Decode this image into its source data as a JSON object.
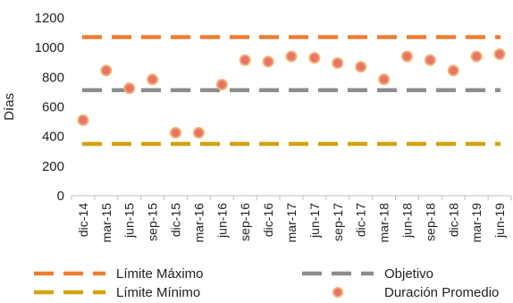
{
  "chart_data": {
    "type": "line",
    "title": "",
    "xlabel": "",
    "ylabel": "Días",
    "ylim": [
      0,
      1200
    ],
    "yticks": [
      0,
      200,
      400,
      600,
      800,
      1000,
      1200
    ],
    "grid": false,
    "legend_position": "bottom",
    "categories": [
      "dic-14",
      "mar-15",
      "jun-15",
      "sep-15",
      "dic-15",
      "mar-16",
      "jun-16",
      "sep-16",
      "dic-16",
      "mar-17",
      "jun-17",
      "sep-17",
      "dic-17",
      "mar-18",
      "jun-18",
      "sep-18",
      "dic-18",
      "mar-19",
      "jun-19"
    ],
    "series": [
      {
        "name": "Límite Máximo",
        "style": "dashed-line",
        "color": "#ED7D31",
        "values": [
          1070,
          1070,
          1070,
          1070,
          1070,
          1070,
          1070,
          1070,
          1070,
          1070,
          1070,
          1070,
          1070,
          1070,
          1070,
          1070,
          1070,
          1070,
          1070
        ]
      },
      {
        "name": "Objetivo",
        "style": "dashed-line",
        "color": "#8C8C8C",
        "values": [
          712,
          712,
          712,
          712,
          712,
          712,
          712,
          712,
          712,
          712,
          712,
          712,
          712,
          712,
          712,
          712,
          712,
          712,
          712
        ]
      },
      {
        "name": "Límite Mínimo",
        "style": "dashed-line",
        "color": "#D4A20A",
        "values": [
          350,
          350,
          350,
          350,
          350,
          350,
          350,
          350,
          350,
          350,
          350,
          350,
          350,
          350,
          350,
          350,
          350,
          350,
          350
        ]
      },
      {
        "name": "Duración Promedio",
        "style": "markers",
        "color": "#E8736A",
        "edge_color": "#F2B06B",
        "values": [
          510,
          845,
          725,
          785,
          425,
          425,
          750,
          915,
          905,
          940,
          930,
          895,
          870,
          785,
          940,
          915,
          845,
          940,
          955
        ]
      }
    ]
  }
}
